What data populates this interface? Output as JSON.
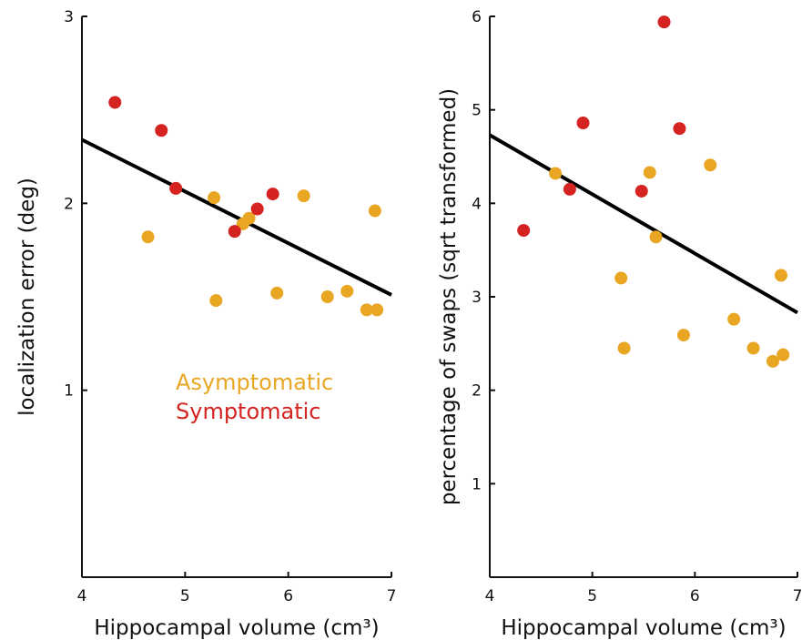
{
  "colors": {
    "asymptomatic": "#E8A623",
    "symptomatic": "#D42320",
    "axis": "#111111",
    "regression": "#000000"
  },
  "legend": {
    "asymptomatic": "Asymptomatic",
    "symptomatic": "Symptomatic"
  },
  "chart_data": [
    {
      "type": "scatter",
      "xlabel": "Hippocampal volume (cm³)",
      "ylabel": "localization error (deg)",
      "xlim": [
        4,
        7
      ],
      "ylim": [
        0,
        3
      ],
      "xticks": [
        4,
        5,
        6,
        7
      ],
      "yticks": [
        1,
        2,
        3
      ],
      "grid": false,
      "legend_position": "center",
      "series": [
        {
          "name": "Asymptomatic",
          "points": [
            [
              4.64,
              1.82
            ],
            [
              5.28,
              2.03
            ],
            [
              5.3,
              1.48
            ],
            [
              5.56,
              1.89
            ],
            [
              5.62,
              1.92
            ],
            [
              5.89,
              1.52
            ],
            [
              6.15,
              2.04
            ],
            [
              6.38,
              1.5
            ],
            [
              6.57,
              1.53
            ],
            [
              6.76,
              1.43
            ],
            [
              6.84,
              1.96
            ],
            [
              6.86,
              1.43
            ]
          ]
        },
        {
          "name": "Symptomatic",
          "points": [
            [
              4.32,
              2.54
            ],
            [
              4.77,
              2.39
            ],
            [
              4.91,
              2.08
            ],
            [
              5.48,
              1.85
            ],
            [
              5.7,
              1.97
            ],
            [
              5.85,
              2.05
            ]
          ]
        }
      ],
      "regression_line": {
        "x": [
          4,
          7
        ],
        "y": [
          2.34,
          1.51
        ]
      }
    },
    {
      "type": "scatter",
      "xlabel": "Hippocampal volume (cm³)",
      "ylabel": "percentage of swaps (sqrt transformed)",
      "xlim": [
        4,
        7
      ],
      "ylim": [
        0,
        6
      ],
      "xticks": [
        4,
        5,
        6,
        7
      ],
      "yticks": [
        1,
        2,
        3,
        4,
        5,
        6
      ],
      "grid": false,
      "series": [
        {
          "name": "Asymptomatic",
          "points": [
            [
              4.64,
              4.32
            ],
            [
              5.28,
              3.2
            ],
            [
              5.31,
              2.45
            ],
            [
              5.56,
              4.33
            ],
            [
              5.62,
              3.64
            ],
            [
              5.89,
              2.59
            ],
            [
              6.15,
              4.41
            ],
            [
              6.38,
              2.76
            ],
            [
              6.57,
              2.45
            ],
            [
              6.76,
              2.31
            ],
            [
              6.84,
              3.23
            ],
            [
              6.86,
              2.38
            ]
          ]
        },
        {
          "name": "Symptomatic",
          "points": [
            [
              4.33,
              3.71
            ],
            [
              4.78,
              4.15
            ],
            [
              4.91,
              4.86
            ],
            [
              5.48,
              4.13
            ],
            [
              5.7,
              5.94
            ],
            [
              5.85,
              4.8
            ]
          ]
        }
      ],
      "regression_line": {
        "x": [
          4,
          7
        ],
        "y": [
          4.73,
          2.83
        ]
      }
    }
  ]
}
